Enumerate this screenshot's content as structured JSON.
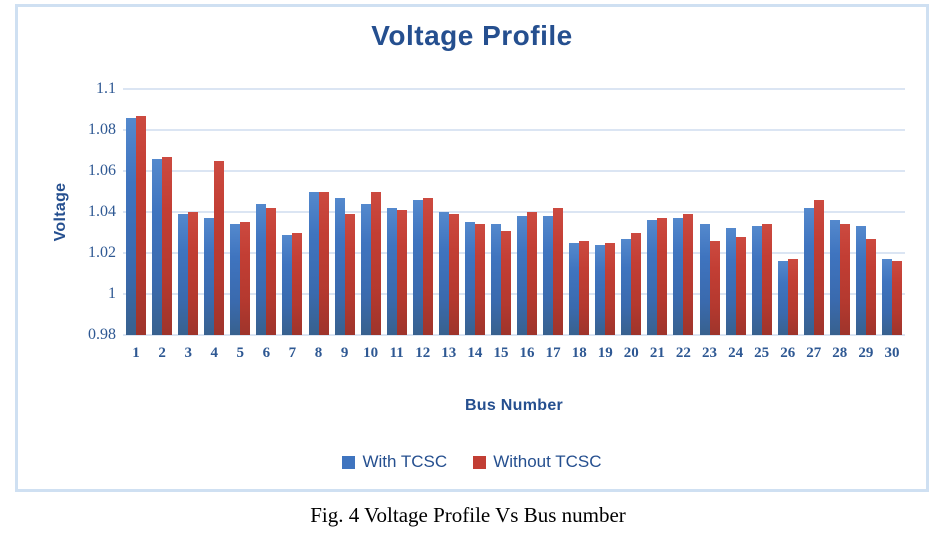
{
  "figure": {
    "caption": "Fig. 4 Voltage Profile Vs Bus number"
  },
  "chart_data": {
    "type": "bar",
    "title": "Voltage Profile",
    "xlabel": "Bus Number",
    "ylabel": "Voltage",
    "categories": [
      "1",
      "2",
      "3",
      "4",
      "5",
      "6",
      "7",
      "8",
      "9",
      "10",
      "11",
      "12",
      "13",
      "14",
      "15",
      "16",
      "17",
      "18",
      "19",
      "20",
      "21",
      "22",
      "23",
      "24",
      "25",
      "26",
      "27",
      "28",
      "29",
      "30"
    ],
    "series": [
      {
        "name": "With TCSC",
        "color": "#3f74bf",
        "values": [
          1.086,
          1.066,
          1.039,
          1.037,
          1.034,
          1.044,
          1.029,
          1.05,
          1.047,
          1.044,
          1.042,
          1.046,
          1.04,
          1.035,
          1.034,
          1.038,
          1.038,
          1.025,
          1.024,
          1.027,
          1.036,
          1.037,
          1.034,
          1.032,
          1.033,
          1.016,
          1.042,
          1.036,
          1.033,
          1.017
        ]
      },
      {
        "name": "Without TCSC",
        "color": "#c23e34",
        "values": [
          1.087,
          1.067,
          1.04,
          1.065,
          1.035,
          1.042,
          1.03,
          1.05,
          1.039,
          1.05,
          1.041,
          1.047,
          1.039,
          1.034,
          1.031,
          1.04,
          1.042,
          1.026,
          1.025,
          1.03,
          1.037,
          1.039,
          1.026,
          1.028,
          1.034,
          1.017,
          1.046,
          1.034,
          1.027,
          1.016
        ]
      }
    ],
    "ylim": [
      0.98,
      1.1
    ],
    "yticks": [
      1.1,
      1.08,
      1.06,
      1.04,
      1.02,
      1.0,
      0.98
    ],
    "ytick_labels": [
      "1.1",
      "1.08",
      "1.06",
      "1.04",
      "1.02",
      "1",
      "0.98"
    ],
    "grid": "horizontal",
    "legend_position": "bottom"
  },
  "colors": {
    "frame_border": "#cfe0f2",
    "gridline": "#dbe5f3",
    "title_text": "#254f8f",
    "tick_text": "#2e5893",
    "caption_text": "#000000"
  }
}
